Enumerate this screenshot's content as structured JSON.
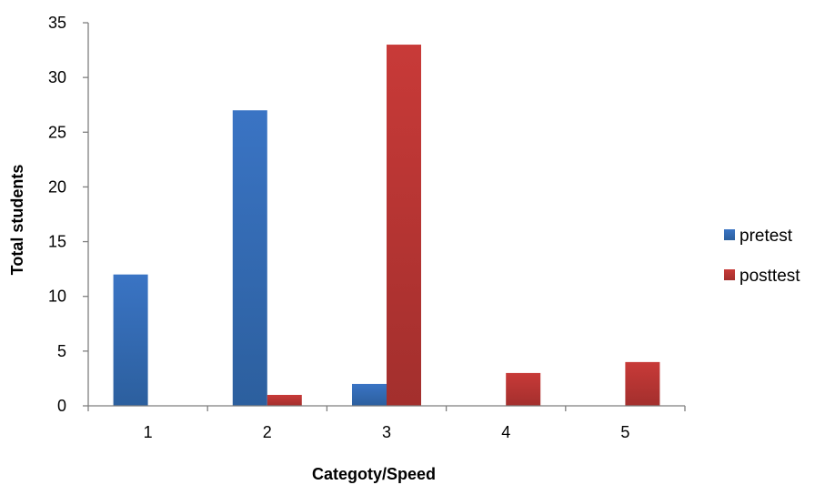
{
  "chart_data": {
    "type": "bar",
    "categories": [
      "1",
      "2",
      "3",
      "4",
      "5"
    ],
    "series": [
      {
        "name": "pretest",
        "values": [
          12,
          27,
          2,
          0,
          0
        ],
        "color": "#3a74c4"
      },
      {
        "name": "posttest",
        "values": [
          0,
          1,
          33,
          3,
          4
        ],
        "color": "#c83a38"
      }
    ],
    "title": "",
    "xlabel": "Categoty/Speed",
    "ylabel": "Total students",
    "ylim": [
      0,
      35
    ],
    "yticks": [
      0,
      5,
      10,
      15,
      20,
      25,
      30,
      35
    ],
    "grid": false,
    "legend_position": "right"
  }
}
